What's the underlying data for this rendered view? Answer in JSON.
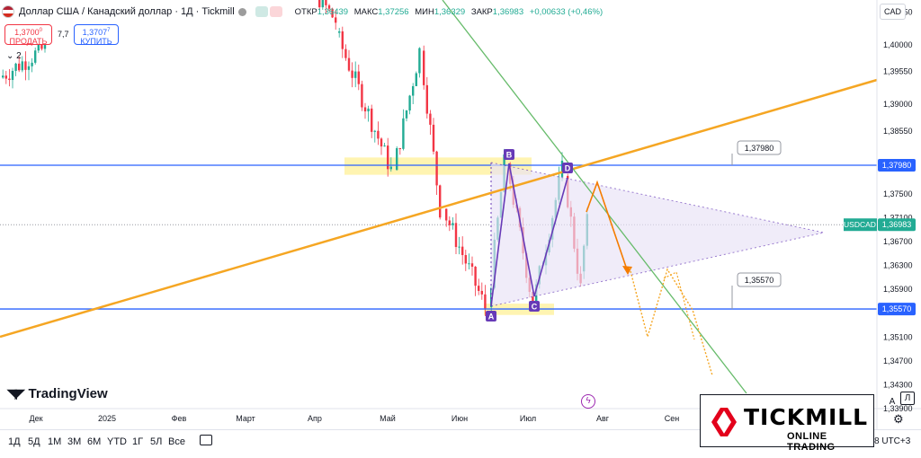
{
  "header": {
    "title": "Доллар США / Канадский доллар · 1Д · Tickmill",
    "ohlc": [
      {
        "label": "ОТКР",
        "value": "1,36439"
      },
      {
        "label": "МАКС",
        "value": "1,37256"
      },
      {
        "label": "МИН",
        "value": "1,36329"
      },
      {
        "label": "ЗАКР",
        "value": "1,36983"
      },
      {
        "label": "",
        "value": "+0,00633 (+0,46%)"
      }
    ],
    "currency": "CAD"
  },
  "trade": {
    "sell_price": "1,3700",
    "sell_sup": "0",
    "sell_label": "ПРОДАТЬ",
    "spread": "7,7",
    "buy_price": "1,3707",
    "buy_sup": "7",
    "buy_label": "КУПИТЬ",
    "indicator_count": "2"
  },
  "chart_data": {
    "type": "candlestick",
    "symbol": "USDCAD",
    "x_labels": [
      "Дек",
      "2025",
      "Фев",
      "Март",
      "Апр",
      "Май",
      "Июн",
      "Июл",
      "Авг",
      "Сен"
    ],
    "y_ticks": [
      "1,40550",
      "1,40000",
      "1,39550",
      "1,39000",
      "1,38550",
      "1,37500",
      "1,37100",
      "1,36700",
      "1,36300",
      "1,35900",
      "1,35100",
      "1,34700",
      "1,34300",
      "1,33900"
    ],
    "ylim": [
      1.339,
      1.4075
    ],
    "price_labels": [
      {
        "text": "1,37980",
        "value": 1.3798,
        "color": "#2962ff"
      },
      {
        "text": "USDCAD",
        "value": 1.36983,
        "color": "#22ab94"
      },
      {
        "text": "1,36983",
        "value": 1.36983,
        "color": "#22ab94"
      },
      {
        "text": "1,35570",
        "value": 1.3557,
        "color": "#2962ff"
      }
    ],
    "horizontal_levels": [
      {
        "value": 1.3798,
        "label": "1,37980",
        "color": "#2962ff"
      },
      {
        "value": 1.3557,
        "label": "1,35570",
        "color": "#2962ff"
      }
    ],
    "pattern_points": [
      {
        "label": "A",
        "value": 1.3546
      },
      {
        "label": "B",
        "value": 1.3805
      },
      {
        "label": "C",
        "value": 1.3557
      },
      {
        "label": "D",
        "value": 1.3794
      }
    ],
    "colors": {
      "up": "#22ab94",
      "down": "#f23645",
      "trend_orange": "#f5a623",
      "trend_green": "#66bb6a",
      "triangle_fill": "#e9e2f7",
      "pattern": "#673ab7"
    }
  },
  "toolbar": {
    "timeframes": [
      "1Д",
      "5Д",
      "1М",
      "3М",
      "6М",
      "YTD",
      "1Г",
      "5Л",
      "Все"
    ],
    "utc": "8 UTC+3",
    "auto": "A",
    "log": "Л"
  },
  "branding": {
    "tradingview": "TradingView",
    "tickmill_name": "TICKMILL",
    "tickmill_sub": "ONLINE TRADING"
  }
}
